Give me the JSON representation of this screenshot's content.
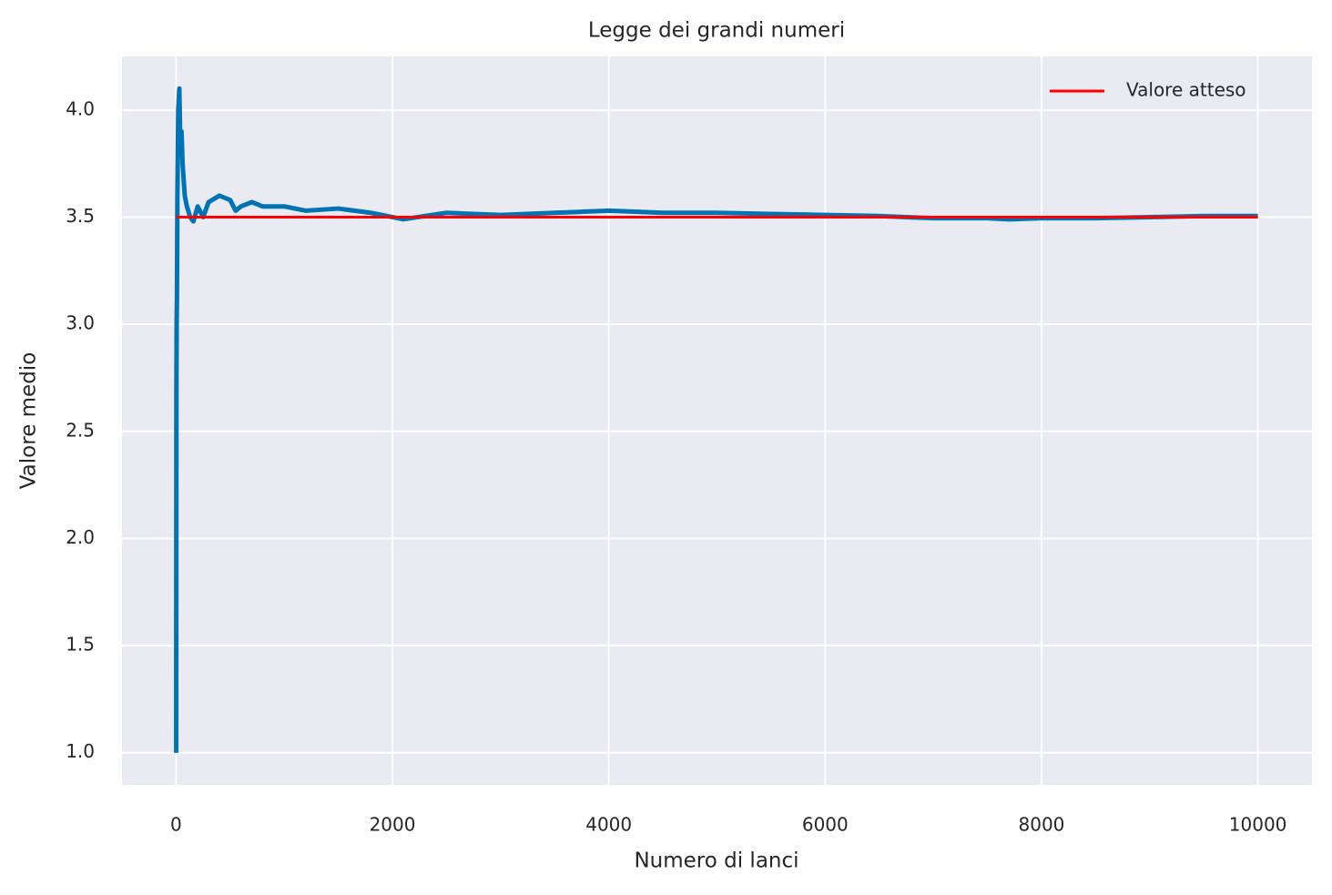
{
  "chart_data": {
    "type": "line",
    "title": "Legge dei grandi numeri",
    "x_label": "Numero di lanci",
    "y_label": "Valore medio",
    "xlim": [
      -500,
      10500
    ],
    "ylim": [
      0.85,
      4.25
    ],
    "xticks": [
      0,
      2000,
      4000,
      6000,
      8000,
      10000
    ],
    "yticks": [
      {
        "value": 1,
        "label": "1.0"
      },
      1.5,
      {
        "value": 2,
        "label": "2.0"
      },
      2.5,
      {
        "value": 3,
        "label": "3.0"
      },
      3.5,
      {
        "value": 4,
        "label": "4.0"
      }
    ],
    "grid": true,
    "legend": "upper right",
    "series": [
      {
        "color": "#0173b2",
        "x": [
          1,
          2,
          3,
          5,
          8,
          12,
          20,
          30,
          40,
          50,
          60,
          80,
          100,
          130,
          160,
          200,
          250,
          300,
          400,
          500,
          550,
          600,
          700,
          800,
          1000,
          1200,
          1500,
          1800,
          2000,
          2100,
          2500,
          3000,
          3500,
          4000,
          4500,
          5000,
          5500,
          6000,
          6500,
          7000,
          7500,
          7700,
          8000,
          8500,
          9000,
          9500,
          10000
        ],
        "values": [
          1.0,
          2.0,
          2.7,
          3.0,
          3.13,
          3.6,
          4.0,
          4.1,
          3.8,
          3.9,
          3.75,
          3.6,
          3.55,
          3.5,
          3.48,
          3.55,
          3.5,
          3.57,
          3.6,
          3.58,
          3.53,
          3.55,
          3.57,
          3.55,
          3.55,
          3.53,
          3.54,
          3.52,
          3.5,
          3.49,
          3.52,
          3.51,
          3.52,
          3.53,
          3.52,
          3.52,
          3.515,
          3.51,
          3.505,
          3.495,
          3.495,
          3.49,
          3.495,
          3.495,
          3.5,
          3.505,
          3.505
        ]
      },
      {
        "name": "Valore atteso",
        "color": "#ff0000",
        "x": [
          1,
          10000
        ],
        "values": [
          3.5,
          3.5
        ]
      }
    ]
  }
}
